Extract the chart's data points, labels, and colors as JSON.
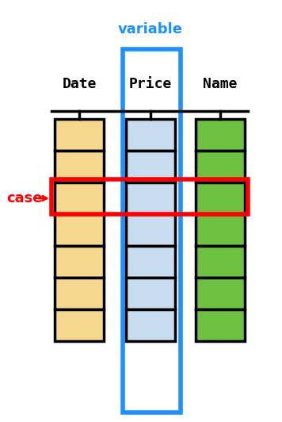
{
  "columns": [
    "Date",
    "Price",
    "Name"
  ],
  "col_colors": [
    "#F5D78E",
    "#C8DCF0",
    "#6DC040"
  ],
  "n_rows": 7,
  "variable_label": "variable",
  "variable_color": "#1E90FF",
  "case_label": "case",
  "case_color": "red",
  "case_row_index": 2,
  "bg_color": "white",
  "cell_edge_color": "black",
  "cell_linewidth": 2.5,
  "blue_lw": 4,
  "red_lw": 4,
  "name_underline_color": "red"
}
